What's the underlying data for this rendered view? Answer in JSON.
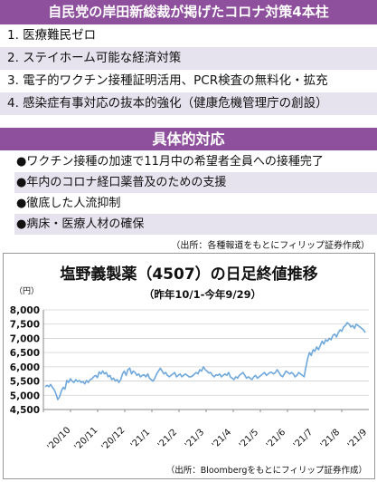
{
  "header": {
    "title": "自民党の岸田新総裁が掲げたコロナ対策4本柱"
  },
  "policies": [
    "1. 医療難民ゼロ",
    "2. ステイホーム可能な経済対策",
    "3. 電子的ワクチン接種証明活用、PCR検査の無料化・拡充",
    "4. 感染症有事対応の抜本的強化（健康危機管理庁の創設）"
  ],
  "measures_header": {
    "title": "具体的対応"
  },
  "measures": [
    "●ワクチン接種の加速で11月中の希望者全員への接種完了",
    "●年内のコロナ経口薬普及のための支援",
    "●徹底した人流抑制",
    "●病床・医療人材の確保"
  ],
  "source_top": "（出所：各種報道をもとにフィリップ証券作成）",
  "chart_data": {
    "type": "line",
    "title": "塩野義製薬（4507）の日足終値推移",
    "subtitle": "（昨年10/1-今年9/29）",
    "ylabel": "（円）",
    "source": "（出所：Bloombergをもとにフィリップ証券作成）",
    "ylim": [
      4500,
      8000
    ],
    "yticks": [
      "4,500",
      "5,000",
      "5,500",
      "6,000",
      "6,500",
      "7,000",
      "7,500",
      "8,000"
    ],
    "ytick_values": [
      4500,
      5000,
      5500,
      6000,
      6500,
      7000,
      7500,
      8000
    ],
    "xticks": [
      "'20/10",
      "'20/11",
      "'20/12",
      "'21/1",
      "'21/2",
      "'21/3",
      "'21/4",
      "'21/5",
      "'21/6",
      "'21/7",
      "'21/8",
      "'21/9"
    ],
    "grid": true,
    "line_color": "#6fa8dc",
    "series": [
      {
        "values": [
          5300,
          5350,
          5300,
          5380,
          5280,
          5200,
          5050,
          4850,
          4950,
          5150,
          5280,
          5220,
          5520,
          5450,
          5580,
          5500,
          5450,
          5550,
          5480,
          5520,
          5450,
          5480,
          5400,
          5520,
          5450,
          5550,
          5580,
          5650,
          5700,
          5620,
          5820,
          5750,
          5850,
          5750,
          5800,
          5650,
          5700,
          5550,
          5600,
          5500,
          5550,
          5450,
          5550,
          5750,
          5850,
          5700,
          5900,
          5950,
          5750,
          5850,
          5800,
          5700,
          5750,
          5650,
          5700,
          5720,
          5650,
          5750,
          5600,
          5550,
          5500,
          5600,
          5750,
          5850,
          5950,
          5850,
          5750,
          5800,
          5700,
          5650,
          5700,
          5750,
          5800,
          5650,
          5700,
          5750,
          5650,
          5700,
          5750,
          5700,
          5650,
          5650,
          5680,
          5750,
          5800,
          5750,
          5900,
          5850,
          6000,
          5900,
          5850,
          5780,
          5800,
          5700,
          5650,
          5720,
          5700,
          5750,
          5650,
          5700,
          5750,
          5700,
          5800,
          5650,
          5600,
          5550,
          5650,
          5600,
          5700,
          5750,
          5800,
          5700,
          5600,
          5650,
          5600,
          5550,
          5650,
          5700,
          5600,
          5650,
          5700,
          5750,
          5800,
          5700,
          5750,
          5800,
          5800,
          5750,
          5800,
          5900,
          5800,
          5700,
          5650,
          5750,
          5850,
          5800,
          5750,
          5800,
          5750,
          5650,
          5700,
          5800,
          5750,
          5700,
          5650,
          6000,
          6300,
          6500,
          6400,
          6600,
          6550,
          6700,
          6600,
          6750,
          6900,
          6800,
          6950,
          6900,
          7000,
          6950,
          7100,
          7150,
          7050,
          7200,
          7300,
          7250,
          7400,
          7450,
          7550,
          7500,
          7400,
          7450,
          7350,
          7500,
          7450,
          7400,
          7350,
          7300,
          7200
        ]
      }
    ]
  }
}
